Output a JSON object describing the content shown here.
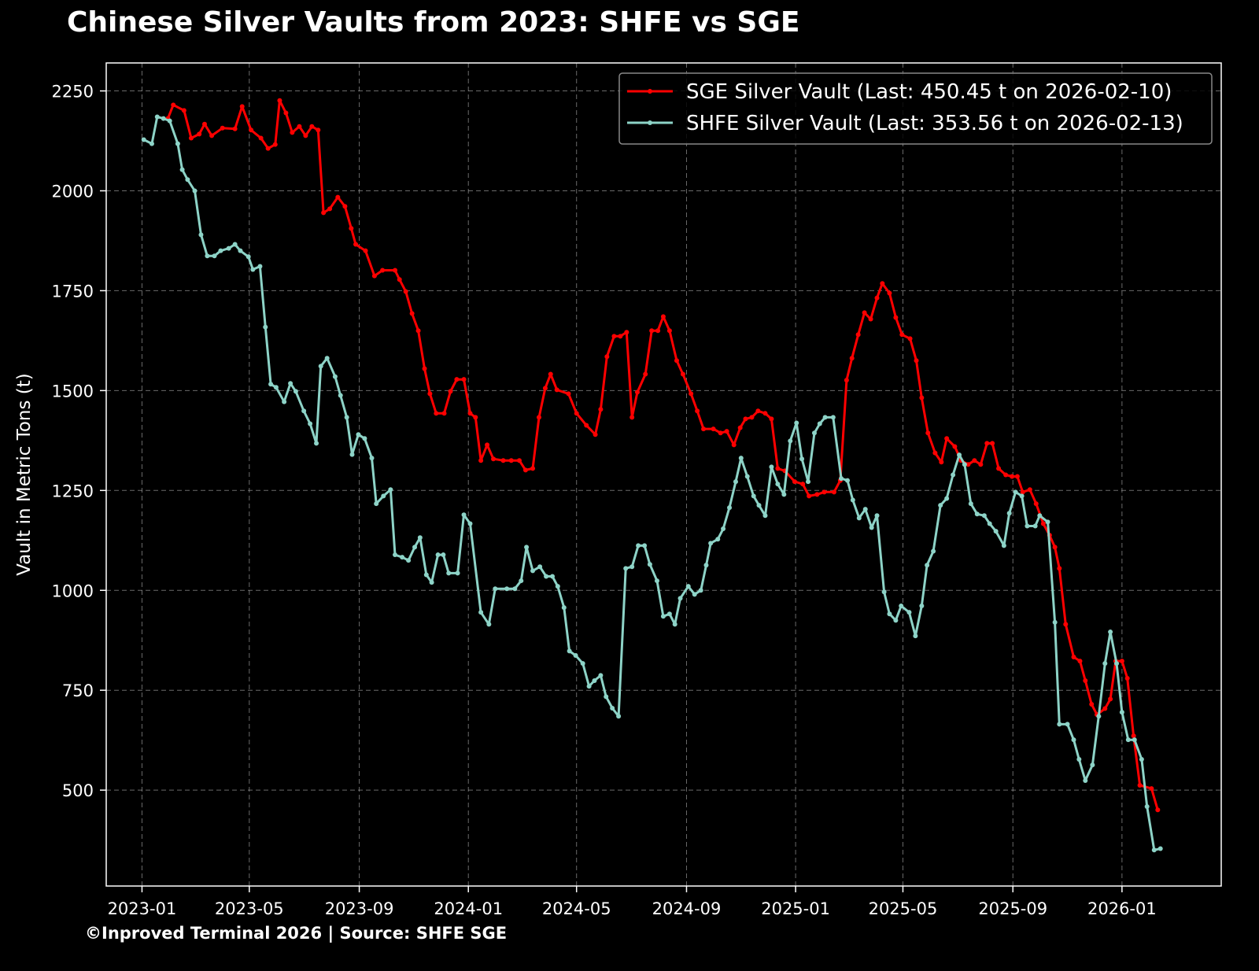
{
  "chart_data": {
    "type": "line",
    "title": "Chinese Silver Vaults from 2023: SHFE vs SGE",
    "xlabel": "",
    "ylabel": "Vault in Metric Tons (t)",
    "footer": "©Inproved Terminal 2026 | Source: SHFE SGE",
    "x_ticks": [
      "2023-01",
      "2023-05",
      "2023-09",
      "2024-01",
      "2024-05",
      "2024-09",
      "2025-01",
      "2025-05",
      "2025-09",
      "2026-01"
    ],
    "y_ticks": [
      500,
      750,
      1000,
      1250,
      1500,
      1750,
      2000,
      2250
    ],
    "ylim": [
      260,
      2320
    ],
    "xlim": [
      "2022-11-22",
      "2026-04-22"
    ],
    "grid": true,
    "legend_position": "top-right",
    "series": [
      {
        "name": "SGE Silver Vault (Last: 450.45 t on 2026-02-10)",
        "color": "#ff0000",
        "dates": [
          "2023-01-30",
          "2023-02-05",
          "2023-02-17",
          "2023-02-25",
          "2023-03-06",
          "2023-03-12",
          "2023-03-20",
          "2023-04-01",
          "2023-04-15",
          "2023-04-23",
          "2023-05-03",
          "2023-05-14",
          "2023-05-22",
          "2023-05-30",
          "2023-06-04",
          "2023-06-11",
          "2023-06-18",
          "2023-06-26",
          "2023-07-03",
          "2023-07-10",
          "2023-07-17",
          "2023-07-23",
          "2023-07-30",
          "2023-08-08",
          "2023-08-16",
          "2023-08-23",
          "2023-08-28",
          "2023-09-08",
          "2023-09-18",
          "2023-09-27",
          "2023-10-11",
          "2023-10-16",
          "2023-10-23",
          "2023-10-30",
          "2023-11-06",
          "2023-11-13",
          "2023-11-19",
          "2023-11-26",
          "2023-12-05",
          "2023-12-12",
          "2023-12-19",
          "2023-12-27",
          "2024-01-03",
          "2024-01-09",
          "2024-01-15",
          "2024-01-22",
          "2024-01-29",
          "2024-02-09",
          "2024-02-18",
          "2024-02-27",
          "2024-03-05",
          "2024-03-13",
          "2024-03-20",
          "2024-03-27",
          "2024-04-02",
          "2024-04-09",
          "2024-04-22",
          "2024-05-01",
          "2024-05-12",
          "2024-05-22",
          "2024-05-28",
          "2024-06-04",
          "2024-06-12",
          "2024-06-19",
          "2024-06-26",
          "2024-07-02",
          "2024-07-08",
          "2024-07-17",
          "2024-07-24",
          "2024-07-31",
          "2024-08-06",
          "2024-08-13",
          "2024-08-21",
          "2024-08-28",
          "2024-09-06",
          "2024-09-13",
          "2024-09-20",
          "2024-10-01",
          "2024-10-09",
          "2024-10-16",
          "2024-10-24",
          "2024-10-31",
          "2024-11-06",
          "2024-11-13",
          "2024-11-20",
          "2024-11-28",
          "2024-12-05",
          "2024-12-12",
          "2024-12-20",
          "2024-12-31",
          "2025-01-09",
          "2025-01-16",
          "2025-01-25",
          "2025-02-02",
          "2025-02-13",
          "2025-02-20",
          "2025-02-27",
          "2025-03-05",
          "2025-03-12",
          "2025-03-19",
          "2025-03-26",
          "2025-04-02",
          "2025-04-08",
          "2025-04-16",
          "2025-04-23",
          "2025-04-30",
          "2025-05-09",
          "2025-05-16",
          "2025-05-22",
          "2025-05-29",
          "2025-06-06",
          "2025-06-13",
          "2025-06-19",
          "2025-06-28",
          "2025-07-05",
          "2025-07-13",
          "2025-07-20",
          "2025-07-27",
          "2025-08-03",
          "2025-08-09",
          "2025-08-16",
          "2025-08-24",
          "2025-08-31",
          "2025-09-06",
          "2025-09-12",
          "2025-09-20",
          "2025-09-27",
          "2025-10-05",
          "2025-10-12",
          "2025-10-18",
          "2025-10-23",
          "2025-10-30",
          "2025-11-08",
          "2025-11-15",
          "2025-11-21",
          "2025-11-28",
          "2025-12-04",
          "2025-12-13",
          "2025-12-19",
          "2025-12-25",
          "2026-01-01",
          "2026-01-07",
          "2026-01-14",
          "2026-01-21",
          "2026-02-03",
          "2026-02-10"
        ],
        "values": [
          2181,
          2215,
          2201,
          2132,
          2142,
          2167,
          2138,
          2157,
          2155,
          2211,
          2152,
          2132,
          2106,
          2116,
          2226,
          2195,
          2146,
          2161,
          2138,
          2161,
          2152,
          1945,
          1955,
          1984,
          1961,
          1906,
          1866,
          1850,
          1787,
          1801,
          1801,
          1778,
          1748,
          1693,
          1650,
          1555,
          1492,
          1443,
          1443,
          1498,
          1528,
          1528,
          1443,
          1433,
          1325,
          1364,
          1329,
          1325,
          1325,
          1325,
          1301,
          1305,
          1433,
          1506,
          1541,
          1502,
          1492,
          1443,
          1413,
          1390,
          1453,
          1585,
          1636,
          1636,
          1646,
          1433,
          1496,
          1541,
          1650,
          1650,
          1685,
          1650,
          1575,
          1541,
          1492,
          1449,
          1404,
          1404,
          1394,
          1398,
          1364,
          1407,
          1429,
          1433,
          1449,
          1443,
          1429,
          1305,
          1299,
          1272,
          1266,
          1236,
          1240,
          1246,
          1246,
          1275,
          1526,
          1581,
          1640,
          1695,
          1679,
          1732,
          1768,
          1744,
          1683,
          1640,
          1630,
          1575,
          1482,
          1394,
          1344,
          1321,
          1380,
          1360,
          1325,
          1315,
          1325,
          1315,
          1368,
          1368,
          1305,
          1289,
          1285,
          1285,
          1246,
          1252,
          1217,
          1167,
          1138,
          1108,
          1055,
          915,
          833,
          823,
          774,
          715,
          689,
          704,
          728,
          823,
          823,
          780,
          636,
          512,
          504,
          450.45
        ]
      },
      {
        "name": "SHFE Silver Vault (Last: 353.56 t on 2026-02-13)",
        "color": "#8dd3c7",
        "dates": [
          "2023-01-03",
          "2023-01-12",
          "2023-01-18",
          "2023-01-25",
          "2023-02-01",
          "2023-02-10",
          "2023-02-15",
          "2023-02-21",
          "2023-03-01",
          "2023-03-08",
          "2023-03-15",
          "2023-03-23",
          "2023-03-30",
          "2023-04-08",
          "2023-04-15",
          "2023-04-21",
          "2023-04-30",
          "2023-05-05",
          "2023-05-13",
          "2023-05-19",
          "2023-05-25",
          "2023-05-31",
          "2023-06-09",
          "2023-06-16",
          "2023-06-22",
          "2023-07-01",
          "2023-07-08",
          "2023-07-15",
          "2023-07-20",
          "2023-07-27",
          "2023-08-05",
          "2023-08-11",
          "2023-08-18",
          "2023-08-24",
          "2023-08-31",
          "2023-09-07",
          "2023-09-15",
          "2023-09-20",
          "2023-09-28",
          "2023-10-06",
          "2023-10-11",
          "2023-10-19",
          "2023-10-26",
          "2023-11-02",
          "2023-11-08",
          "2023-11-15",
          "2023-11-21",
          "2023-11-28",
          "2023-12-04",
          "2023-12-10",
          "2023-12-20",
          "2023-12-27",
          "2024-01-03",
          "2024-01-15",
          "2024-01-24",
          "2024-01-31",
          "2024-02-13",
          "2024-02-22",
          "2024-02-29",
          "2024-03-06",
          "2024-03-13",
          "2024-03-21",
          "2024-03-28",
          "2024-04-04",
          "2024-04-10",
          "2024-04-17",
          "2024-04-23",
          "2024-04-30",
          "2024-05-08",
          "2024-05-15",
          "2024-05-21",
          "2024-05-28",
          "2024-06-03",
          "2024-06-10",
          "2024-06-17",
          "2024-06-25",
          "2024-07-02",
          "2024-07-09",
          "2024-07-16",
          "2024-07-22",
          "2024-07-30",
          "2024-08-06",
          "2024-08-13",
          "2024-08-19",
          "2024-08-25",
          "2024-09-03",
          "2024-09-10",
          "2024-09-17",
          "2024-09-23",
          "2024-09-28",
          "2024-10-06",
          "2024-10-12",
          "2024-10-19",
          "2024-10-26",
          "2024-11-01",
          "2024-11-08",
          "2024-11-15",
          "2024-11-21",
          "2024-11-28",
          "2024-12-05",
          "2024-12-12",
          "2024-12-19",
          "2024-12-26",
          "2025-01-02",
          "2025-01-08",
          "2025-01-15",
          "2025-01-22",
          "2025-01-28",
          "2025-02-03",
          "2025-02-12",
          "2025-02-21",
          "2025-02-28",
          "2025-03-06",
          "2025-03-13",
          "2025-03-20",
          "2025-03-27",
          "2025-04-02",
          "2025-04-10",
          "2025-04-16",
          "2025-04-23",
          "2025-04-29",
          "2025-05-08",
          "2025-05-15",
          "2025-05-22",
          "2025-05-28",
          "2025-06-04",
          "2025-06-12",
          "2025-06-19",
          "2025-06-26",
          "2025-07-03",
          "2025-07-09",
          "2025-07-16",
          "2025-07-23",
          "2025-07-31",
          "2025-08-06",
          "2025-08-13",
          "2025-08-22",
          "2025-08-28",
          "2025-09-04",
          "2025-09-11",
          "2025-09-17",
          "2025-09-26",
          "2025-10-01",
          "2025-10-10",
          "2025-10-18",
          "2025-10-23",
          "2025-11-01",
          "2025-11-08",
          "2025-11-14",
          "2025-11-21",
          "2025-11-29",
          "2025-12-06",
          "2025-12-13",
          "2025-12-19",
          "2025-12-26",
          "2026-01-01",
          "2026-01-08",
          "2026-01-15",
          "2026-01-23",
          "2026-01-29",
          "2026-02-06",
          "2026-02-13"
        ],
        "values": [
          2128,
          2118,
          2185,
          2181,
          2175,
          2118,
          2053,
          2028,
          2000,
          1890,
          1837,
          1837,
          1850,
          1856,
          1866,
          1850,
          1835,
          1803,
          1811,
          1659,
          1516,
          1508,
          1472,
          1518,
          1498,
          1449,
          1417,
          1368,
          1561,
          1581,
          1535,
          1488,
          1433,
          1340,
          1390,
          1380,
          1331,
          1217,
          1236,
          1252,
          1089,
          1083,
          1075,
          1108,
          1132,
          1039,
          1020,
          1089,
          1089,
          1043,
          1043,
          1189,
          1167,
          945,
          915,
          1004,
          1004,
          1004,
          1024,
          1108,
          1049,
          1059,
          1035,
          1035,
          1010,
          957,
          848,
          837,
          817,
          760,
          774,
          787,
          734,
          705,
          685,
          1055,
          1059,
          1112,
          1112,
          1065,
          1024,
          935,
          941,
          915,
          980,
          1010,
          990,
          1000,
          1063,
          1118,
          1128,
          1154,
          1207,
          1272,
          1331,
          1285,
          1236,
          1213,
          1187,
          1309,
          1266,
          1240,
          1374,
          1419,
          1329,
          1272,
          1394,
          1417,
          1433,
          1433,
          1280,
          1275,
          1226,
          1181,
          1203,
          1157,
          1187,
          996,
          941,
          925,
          961,
          945,
          886,
          961,
          1063,
          1098,
          1213,
          1230,
          1289,
          1339,
          1315,
          1217,
          1191,
          1187,
          1167,
          1148,
          1112,
          1193,
          1246,
          1236,
          1161,
          1161,
          1187,
          1171,
          920,
          665,
          665,
          626,
          577,
          524,
          563,
          685,
          817,
          896,
          817,
          695,
          626,
          626,
          577,
          459,
          350,
          353.56
        ]
      }
    ]
  }
}
